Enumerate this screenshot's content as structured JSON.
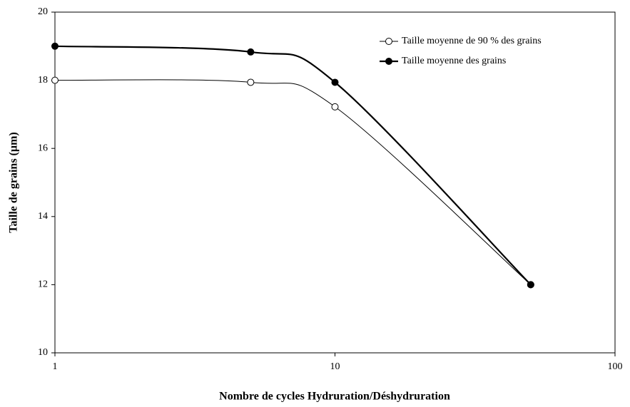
{
  "chart_data": {
    "type": "line",
    "xlabel": "Nombre de cycles Hydruration/Déshydruration",
    "ylabel": "Taille de grains (µm)",
    "x": [
      1,
      5,
      10,
      50
    ],
    "series": [
      {
        "name": "Taille moyenne de 90 % des grains",
        "color": "#000000",
        "marker": "open",
        "values": [
          18,
          17.94,
          17.22,
          12
        ]
      },
      {
        "name": "Taille moyenne des grains",
        "color": "#000000",
        "marker": "filled",
        "values": [
          19,
          18.83,
          17.94,
          12
        ]
      }
    ],
    "xscale": "log",
    "xlim": [
      1,
      100
    ],
    "xticks": [
      1,
      10,
      100
    ],
    "ylim": [
      10,
      20
    ],
    "yticks": [
      10,
      12,
      14,
      16,
      18,
      20
    ],
    "legend": "upper right"
  }
}
